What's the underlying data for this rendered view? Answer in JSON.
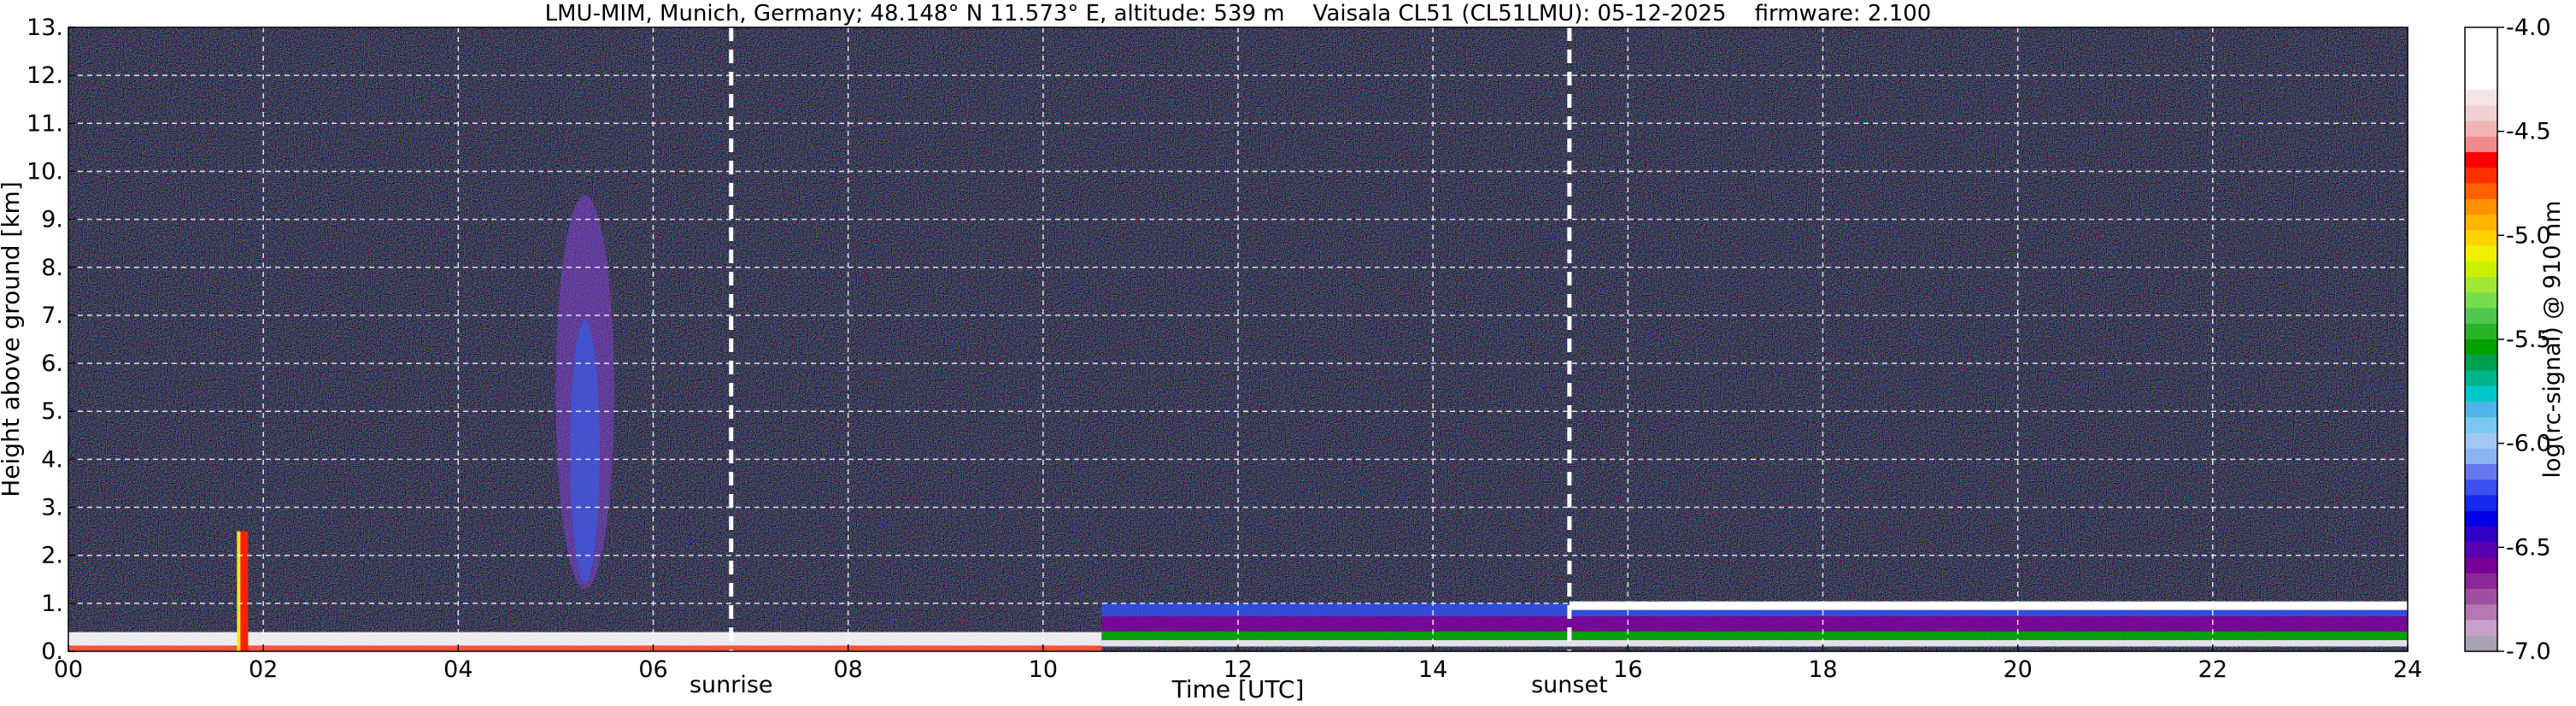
{
  "chart_data": {
    "type": "heatmap",
    "title": "LMU-MIM, Munich, Germany; 48.148° N 11.573° E, altitude: 539 m    Vaisala CL51 (CL51LMU): 05-12-2025    firmware: 2.100",
    "xlabel": "Time [UTC]",
    "ylabel": "Height above ground [km]",
    "xlim": [
      0,
      24
    ],
    "ylim": [
      0,
      13
    ],
    "x_ticks": [
      0,
      2,
      4,
      6,
      8,
      10,
      12,
      14,
      16,
      18,
      20,
      22,
      24
    ],
    "x_tick_labels": [
      "00",
      "02",
      "04",
      "06",
      "08",
      "10",
      "12",
      "14",
      "16",
      "18",
      "20",
      "22",
      "24"
    ],
    "y_ticks": [
      0,
      1,
      2,
      3,
      4,
      5,
      6,
      7,
      8,
      9,
      10,
      11,
      12,
      13
    ],
    "y_tick_labels": [
      "0.",
      "1.",
      "2.",
      "3.",
      "4.",
      "5.",
      "6.",
      "7.",
      "8.",
      "9.",
      "10.",
      "11.",
      "12.",
      "13."
    ],
    "grid": true,
    "background": "#000000",
    "annotations": [
      {
        "type": "vline",
        "x": 6.8,
        "label": "sunrise",
        "style": "dashed",
        "color": "#ffffff"
      },
      {
        "type": "vline",
        "x": 15.4,
        "label": "sunset",
        "style": "dashed",
        "color": "#ffffff"
      }
    ],
    "colorbar": {
      "label": "log(rc-signal) @ 910 nm",
      "range": [
        -7.0,
        -4.0
      ],
      "ticks": [
        -4.0,
        -4.5,
        -5.0,
        -5.5,
        -6.0,
        -6.5,
        -7.0
      ],
      "tick_labels": [
        "-4.0",
        "-4.5",
        "-5.0",
        "-5.5",
        "-6.0",
        "-6.5",
        "-7.0"
      ],
      "colors": [
        "#ffffff",
        "#ffffff",
        "#ffffff",
        "#ffffff",
        "#f4e4e4",
        "#f0d0d0",
        "#f0b4b4",
        "#f08a8a",
        "#ff0000",
        "#ff3000",
        "#ff6000",
        "#ff9000",
        "#ffb400",
        "#ffd200",
        "#f0f000",
        "#c8f000",
        "#a0e632",
        "#78dc50",
        "#50c850",
        "#28b428",
        "#00a000",
        "#00a050",
        "#00b48c",
        "#00c8c8",
        "#50b4e6",
        "#78c8f0",
        "#a0c8f0",
        "#8cb4f0",
        "#6478f0",
        "#3c50f0",
        "#1428f0",
        "#0000e6",
        "#3200c8",
        "#5a00b4",
        "#780096",
        "#8c2896",
        "#a050a0",
        "#b478b4",
        "#c8a0c8",
        "#aaa0b4"
      ]
    },
    "features": [
      {
        "type": "cloud_layer",
        "x": [
          10.6,
          24.0
        ],
        "height_km": [
          0.1,
          1.0
        ],
        "description_colors": [
          "#ffffff",
          "#00b000",
          "#8000a0",
          "#3050f0"
        ]
      },
      {
        "type": "cloud_top",
        "x": [
          15.4,
          24.0
        ],
        "height_km": 0.95
      },
      {
        "type": "near_ground_layer",
        "x": [
          0,
          10.6
        ],
        "height_km": [
          0.0,
          0.4
        ]
      },
      {
        "type": "elevated_signal",
        "x": [
          5.0,
          5.6
        ],
        "height_km": [
          1.3,
          9.5
        ]
      },
      {
        "type": "spike",
        "x": 1.8,
        "height_km": [
          0,
          2.5
        ]
      }
    ]
  }
}
